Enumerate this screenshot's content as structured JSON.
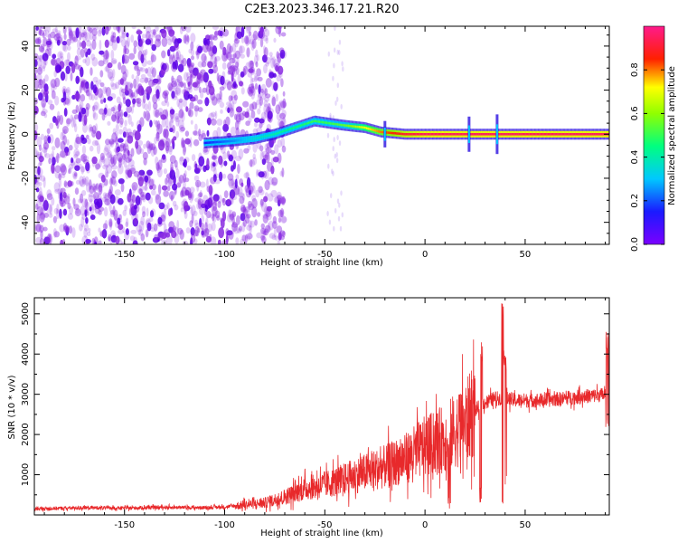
{
  "title": "C2E3.2023.346.17.21.R20",
  "colors": {
    "snr_line": "#e8292b",
    "spectrum_low": "#7b00ff",
    "spectrum_high": "#ff1a8c"
  },
  "chart_data": [
    {
      "type": "heatmap",
      "xlabel": "Height of straight line (km)",
      "ylabel": "Frequency (Hz)",
      "xlim": [
        -195,
        92
      ],
      "ylim": [
        -50,
        49
      ],
      "xticks": [
        -150,
        -100,
        -50,
        0,
        50
      ],
      "yticks": [
        -40,
        -20,
        0,
        20,
        40
      ],
      "grid": false,
      "colorbar": {
        "label": "Normalized spectral amplitude",
        "range": [
          0,
          1
        ],
        "ticks": [
          0.0,
          0.2,
          0.4,
          0.6,
          0.8
        ],
        "colormap": "rainbow (purple→blue→cyan→green→yellow→red→magenta)"
      },
      "trace": {
        "x": [
          -110,
          -95,
          -85,
          -75,
          -65,
          -55,
          -48,
          -40,
          -30,
          -22,
          -10,
          0,
          20,
          50,
          92
        ],
        "y": [
          -4,
          -3,
          -2,
          0,
          3,
          6,
          5,
          4,
          3,
          1,
          0,
          0,
          0,
          0,
          0
        ],
        "amplitude": [
          0.15,
          0.25,
          0.35,
          0.4,
          0.45,
          0.5,
          0.5,
          0.55,
          0.7,
          0.8,
          0.9,
          0.95,
          0.95,
          0.95,
          0.95
        ]
      }
    },
    {
      "type": "line",
      "xlabel": "Height of straight line (km)",
      "ylabel": "SNR (10 * v/v)",
      "xlim": [
        -195,
        92
      ],
      "ylim": [
        0,
        5400
      ],
      "xticks": [
        -150,
        -100,
        -50,
        0,
        50
      ],
      "yticks": [
        1000,
        2000,
        3000,
        4000,
        5000
      ],
      "grid": false,
      "series": [
        {
          "x": [
            -195,
            -170,
            -150,
            -130,
            -110,
            -100,
            -90,
            -80,
            -70,
            -60,
            -50,
            -40,
            -30,
            -20,
            -10,
            0,
            10,
            20,
            25,
            30,
            35,
            40,
            45,
            50,
            60,
            70,
            80,
            92
          ],
          "y": [
            150,
            180,
            170,
            190,
            180,
            200,
            250,
            300,
            450,
            650,
            750,
            900,
            1050,
            1200,
            1400,
            1700,
            1900,
            2300,
            2600,
            2800,
            2900,
            2900,
            2850,
            2850,
            2850,
            2900,
            2950,
            3000
          ]
        }
      ],
      "spikes": [
        {
          "x": 28,
          "min": 300,
          "max": 4300
        },
        {
          "x": 39,
          "min": 200,
          "max": 5400
        },
        {
          "x": 40,
          "min": 700,
          "max": 4100
        },
        {
          "x": 12,
          "min": 100,
          "max": 2100
        },
        {
          "x": 91,
          "min": 2000,
          "max": 4600
        }
      ]
    }
  ]
}
